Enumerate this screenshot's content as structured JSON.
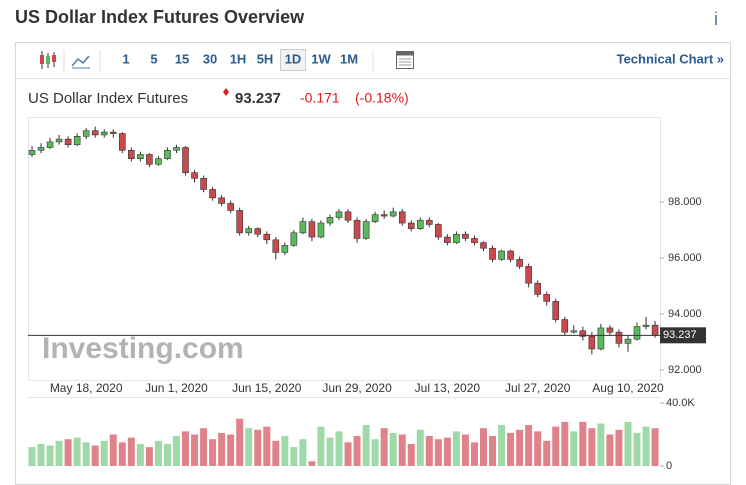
{
  "header": {
    "title": "US Dollar Index Futures Overview",
    "info": "i"
  },
  "toolbar": {
    "intervals": [
      "1",
      "5",
      "15",
      "30",
      "1H",
      "5H",
      "1D",
      "1W",
      "1M"
    ],
    "selected": "1D",
    "link": "Technical Chart »"
  },
  "quote": {
    "name": "US Dollar Index Futures",
    "price": 93.237,
    "change": -0.171,
    "change_pct": "(-0.18%)"
  },
  "watermark": "Investing.com",
  "chart_data": [
    {
      "type": "candlestick",
      "categories": [
        null,
        null,
        null,
        null,
        null,
        null,
        "May 18, 2020",
        null,
        null,
        null,
        null,
        null,
        null,
        null,
        null,
        null,
        "Jun 1, 2020",
        null,
        null,
        null,
        null,
        null,
        null,
        null,
        null,
        null,
        "Jun 15, 2020",
        null,
        null,
        null,
        null,
        null,
        null,
        null,
        null,
        null,
        "Jun 29, 2020",
        null,
        null,
        null,
        null,
        null,
        null,
        null,
        null,
        null,
        "Jul 13, 2020",
        null,
        null,
        null,
        null,
        null,
        null,
        null,
        null,
        null,
        "Jul 27, 2020",
        null,
        null,
        null,
        null,
        null,
        null,
        null,
        null,
        null,
        "Aug 10, 2020",
        null,
        null,
        null
      ],
      "open": [
        99.7,
        99.85,
        99.95,
        100.15,
        100.25,
        100.05,
        100.35,
        100.55,
        100.4,
        100.5,
        100.45,
        99.85,
        99.55,
        99.7,
        99.35,
        99.55,
        99.85,
        99.95,
        99.05,
        98.85,
        98.45,
        98.15,
        97.95,
        97.7,
        96.9,
        97.05,
        96.85,
        96.65,
        96.2,
        96.45,
        96.9,
        97.3,
        96.75,
        97.25,
        97.45,
        97.65,
        97.35,
        96.7,
        97.3,
        97.55,
        97.5,
        97.65,
        97.25,
        97.05,
        97.35,
        97.2,
        96.75,
        96.55,
        96.85,
        96.7,
        96.55,
        96.35,
        95.95,
        96.25,
        95.95,
        95.7,
        95.1,
        94.7,
        94.45,
        93.8,
        93.35,
        93.4,
        93.2,
        92.75,
        93.5,
        93.35,
        92.95,
        93.1,
        93.55,
        93.6
      ],
      "high": [
        100.0,
        100.1,
        100.3,
        100.4,
        100.35,
        100.45,
        100.65,
        100.7,
        100.6,
        100.6,
        100.5,
        99.95,
        99.8,
        99.75,
        99.65,
        99.95,
        100.05,
        100.0,
        99.15,
        98.95,
        98.55,
        98.25,
        98.05,
        97.8,
        97.15,
        97.1,
        96.95,
        96.75,
        96.55,
        97.0,
        97.45,
        97.4,
        97.35,
        97.55,
        97.75,
        97.75,
        97.45,
        97.4,
        97.65,
        97.7,
        97.8,
        97.75,
        97.35,
        97.45,
        97.45,
        97.25,
        96.85,
        96.95,
        96.95,
        96.8,
        96.6,
        96.45,
        96.3,
        96.3,
        96.05,
        95.8,
        95.2,
        94.8,
        94.55,
        93.9,
        93.6,
        93.55,
        93.35,
        93.65,
        93.6,
        93.45,
        93.25,
        93.7,
        93.9,
        93.75
      ],
      "low": [
        99.6,
        99.75,
        99.9,
        100.05,
        99.95,
        100.0,
        100.25,
        100.3,
        100.3,
        100.3,
        99.75,
        99.45,
        99.45,
        99.25,
        99.3,
        99.5,
        99.75,
        98.95,
        98.7,
        98.35,
        98.05,
        97.85,
        97.6,
        96.8,
        96.8,
        96.75,
        96.5,
        95.95,
        96.1,
        96.4,
        96.85,
        96.6,
        96.7,
        97.15,
        97.35,
        97.25,
        96.55,
        96.65,
        97.25,
        97.4,
        97.45,
        97.15,
        96.95,
        97.0,
        97.1,
        96.65,
        96.45,
        96.5,
        96.6,
        96.45,
        96.25,
        95.85,
        95.9,
        95.85,
        95.6,
        94.95,
        94.6,
        94.3,
        93.7,
        93.25,
        93.3,
        93.05,
        92.55,
        92.7,
        93.25,
        92.8,
        92.65,
        93.05,
        93.45,
        93.15
      ],
      "close": [
        99.85,
        99.95,
        100.15,
        100.25,
        100.05,
        100.35,
        100.55,
        100.4,
        100.5,
        100.45,
        99.85,
        99.55,
        99.7,
        99.35,
        99.55,
        99.85,
        99.95,
        99.05,
        98.85,
        98.45,
        98.15,
        97.95,
        97.7,
        96.9,
        97.05,
        96.85,
        96.65,
        96.2,
        96.45,
        96.9,
        97.3,
        96.75,
        97.25,
        97.45,
        97.65,
        97.35,
        96.7,
        97.3,
        97.55,
        97.5,
        97.65,
        97.25,
        97.05,
        97.35,
        97.2,
        96.75,
        96.55,
        96.85,
        96.7,
        96.55,
        96.35,
        95.95,
        96.25,
        95.95,
        95.7,
        95.1,
        94.7,
        94.45,
        93.8,
        93.35,
        93.4,
        93.2,
        92.75,
        93.5,
        93.35,
        92.95,
        93.1,
        93.55,
        93.6,
        93.237
      ],
      "up_color": "#5cb85c",
      "down_color": "#c9494d",
      "ylim": [
        91.64,
        101.04
      ],
      "yticks": [
        {
          "value": 92,
          "label": "92.000"
        },
        {
          "value": 94,
          "label": "94.000"
        },
        {
          "value": 96,
          "label": "96.000"
        },
        {
          "value": 98,
          "label": "98.000"
        }
      ],
      "last_price_label": "93.237"
    },
    {
      "type": "bar",
      "values": [
        12000,
        14000,
        13000,
        16000,
        17000,
        18000,
        15000,
        13000,
        16000,
        20000,
        15000,
        18000,
        14000,
        12000,
        16000,
        14000,
        19000,
        22000,
        20000,
        24000,
        17000,
        21000,
        20000,
        30000,
        24000,
        23000,
        25000,
        16000,
        19000,
        12000,
        17000,
        3000,
        25000,
        18000,
        22000,
        15000,
        19000,
        26000,
        17000,
        24000,
        21000,
        20000,
        14000,
        23000,
        19000,
        17000,
        18000,
        22000,
        20000,
        15000,
        24000,
        19000,
        26000,
        21000,
        23000,
        26000,
        22000,
        16000,
        25000,
        28000,
        22000,
        28000,
        24000,
        27000,
        20000,
        23000,
        28000,
        21000,
        25000,
        24000
      ],
      "up_color": "#9ed9a8",
      "down_color": "#e0828a",
      "ylim": [
        0,
        43800
      ],
      "yticks": [
        0,
        {
          "value": 40000,
          "label": "40.0K"
        }
      ]
    }
  ]
}
